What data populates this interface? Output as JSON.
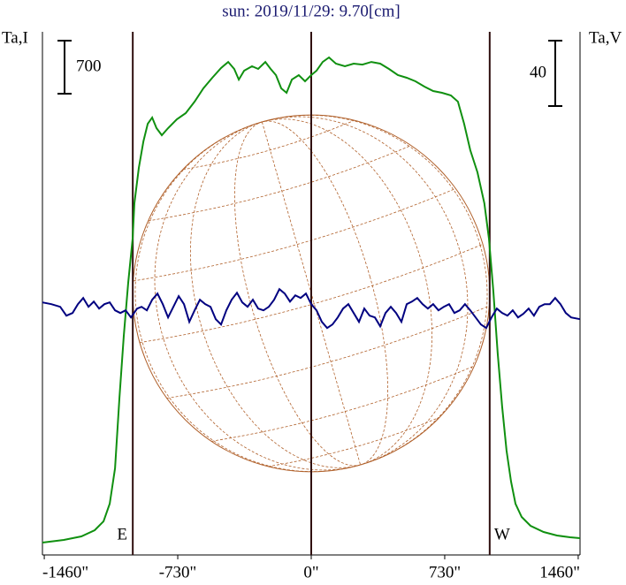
{
  "chart_data": {
    "type": "line",
    "title": "sun: 2019/11/29: 9.70[cm]",
    "y_label": "Ta,I",
    "y2_label": "Ta,V",
    "xlim": [
      -1470,
      1470
    ],
    "xticks": [
      {
        "value": -1460,
        "label": "-1460\""
      },
      {
        "value": -730,
        "label": "-730\""
      },
      {
        "value": 0,
        "label": "0\""
      },
      {
        "value": 730,
        "label": "730\""
      },
      {
        "value": 1460,
        "label": "1460\""
      }
    ],
    "ylim": [
      0,
      6900
    ],
    "y2lim": [
      -148,
      172
    ],
    "scale_bars": [
      {
        "value": 700,
        "axis": "y"
      },
      {
        "value": 40,
        "axis": "y2"
      }
    ],
    "limb_lines": [
      {
        "value": -976,
        "label": "E"
      },
      {
        "value": 976,
        "label": "W"
      }
    ],
    "series": [
      {
        "color": "#109010",
        "axis": "y",
        "x": [
          -1470,
          -1353,
          -1257,
          -1184,
          -1136,
          -1102,
          -1073,
          -1049,
          -1025,
          -1001,
          -977,
          -967,
          -943,
          -918,
          -894,
          -870,
          -846,
          -817,
          -783,
          -735,
          -686,
          -638,
          -590,
          -541,
          -493,
          -454,
          -421,
          -396,
          -367,
          -324,
          -290,
          -251,
          -222,
          -193,
          -164,
          -135,
          -106,
          -68,
          -34,
          0,
          29,
          63,
          97,
          135,
          184,
          232,
          280,
          329,
          377,
          425,
          474,
          522,
          570,
          619,
          667,
          715,
          764,
          802,
          836,
          870,
          909,
          947,
          972,
          996,
          1020,
          1044,
          1068,
          1093,
          1117,
          1151,
          1199,
          1271,
          1344,
          1416,
          1470
        ],
        "values": [
          163,
          198,
          245,
          326,
          443,
          676,
          1142,
          2075,
          2890,
          3590,
          4172,
          4639,
          5105,
          5455,
          5688,
          5769,
          5629,
          5536,
          5629,
          5746,
          5828,
          5979,
          6154,
          6294,
          6422,
          6503,
          6410,
          6270,
          6387,
          6445,
          6410,
          6503,
          6410,
          6329,
          6154,
          6096,
          6270,
          6329,
          6247,
          6329,
          6387,
          6503,
          6562,
          6480,
          6445,
          6480,
          6468,
          6503,
          6480,
          6410,
          6329,
          6294,
          6247,
          6177,
          6119,
          6096,
          6061,
          5979,
          5688,
          5338,
          5047,
          4639,
          4172,
          3473,
          2657,
          1958,
          1375,
          967,
          676,
          501,
          385,
          303,
          256,
          233,
          221
        ]
      },
      {
        "color": "#000080",
        "axis": "y2",
        "x": [
          -1470,
          -1421,
          -1373,
          -1339,
          -1305,
          -1276,
          -1247,
          -1218,
          -1189,
          -1160,
          -1131,
          -1102,
          -1073,
          -1044,
          -1015,
          -986,
          -952,
          -928,
          -899,
          -870,
          -841,
          -812,
          -783,
          -754,
          -725,
          -696,
          -667,
          -638,
          -609,
          -580,
          -551,
          -522,
          -493,
          -464,
          -435,
          -406,
          -377,
          -348,
          -319,
          -290,
          -261,
          -232,
          -203,
          -174,
          -145,
          -116,
          -87,
          -58,
          -29,
          0,
          29,
          58,
          87,
          116,
          145,
          174,
          203,
          232,
          261,
          290,
          319,
          348,
          377,
          406,
          435,
          464,
          493,
          522,
          551,
          580,
          609,
          638,
          667,
          696,
          725,
          754,
          783,
          812,
          841,
          870,
          899,
          928,
          957,
          986,
          1015,
          1044,
          1073,
          1102,
          1131,
          1160,
          1189,
          1218,
          1247,
          1276,
          1305,
          1334,
          1363,
          1392,
          1421,
          1470
        ],
        "values": [
          6.5,
          5.4,
          3.8,
          -1.6,
          0,
          5.4,
          9.2,
          3.8,
          7.0,
          2.7,
          5.4,
          6.5,
          1.6,
          0,
          1.6,
          -2.7,
          2.7,
          3.8,
          1.6,
          8.1,
          11.9,
          5.4,
          -2.7,
          3.8,
          10.3,
          5.4,
          -5.4,
          1.6,
          8.1,
          5.4,
          3.8,
          -3.8,
          -7.0,
          1.6,
          8.1,
          12.4,
          6.5,
          3.8,
          8.1,
          2.7,
          1.6,
          3.8,
          8.1,
          14.6,
          11.9,
          7.0,
          10.8,
          9.2,
          11.9,
          5.4,
          1.6,
          -5.4,
          -9.2,
          -7.0,
          -2.7,
          2.7,
          5.4,
          0,
          -5.4,
          2.7,
          -1.6,
          -2.7,
          -8.1,
          0,
          3.8,
          0,
          -5.4,
          5.4,
          7.0,
          9.2,
          5.4,
          2.7,
          5.4,
          1.6,
          3.8,
          5.4,
          0,
          1.6,
          5.4,
          1.6,
          -2.7,
          -7.0,
          -9.2,
          -2.7,
          2.7,
          0,
          -1.6,
          1.6,
          -2.7,
          -0.5,
          2.7,
          -1.6,
          3.8,
          5.4,
          5.4,
          9.2,
          5.4,
          0,
          -2.7,
          -3.8
        ]
      }
    ]
  }
}
